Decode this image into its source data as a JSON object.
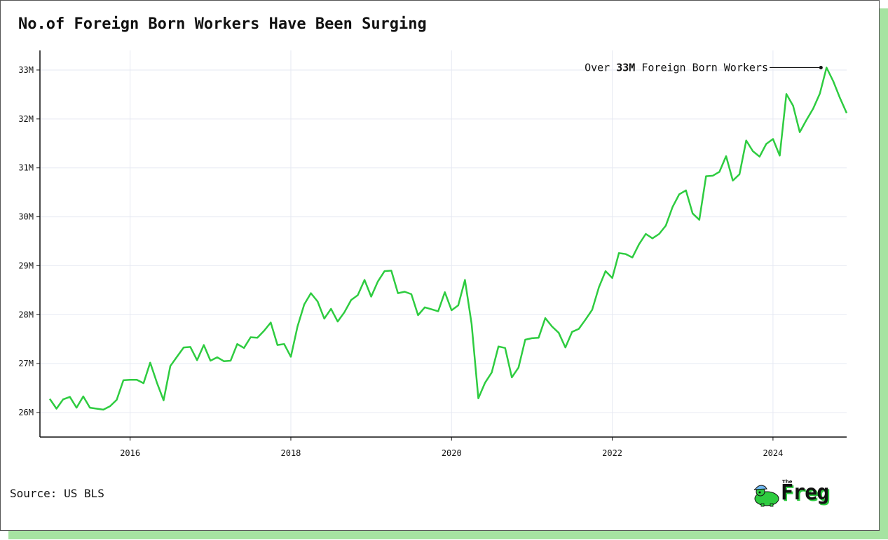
{
  "title": "No.of Foreign Born Workers Have Been Surging",
  "source": "Source: US BLS",
  "logo": {
    "small": "The",
    "word": "Freg",
    "icon": "frog-with-cap-icon"
  },
  "colors": {
    "line": "#2ecc40",
    "grid": "#e6e9f2",
    "axis": "#111111",
    "shadow": "#a6e3a1",
    "text": "#111111"
  },
  "annotation": {
    "prefix": "Over ",
    "bold": "33M",
    "suffix": " Foreign Born Workers"
  },
  "chart_data": {
    "type": "line",
    "title": "No.of Foreign Born Workers Have Been Surging",
    "xlabel": "",
    "ylabel": "",
    "x_start": "2015-01",
    "frequency": "monthly",
    "xlim": [
      "2015-01",
      "2024-12"
    ],
    "ylim": [
      25.5,
      33.4
    ],
    "y_ticks": [
      26,
      27,
      28,
      29,
      30,
      31,
      32,
      33
    ],
    "y_tick_labels": [
      "26M",
      "27M",
      "28M",
      "29M",
      "30M",
      "31M",
      "32M",
      "33M"
    ],
    "x_ticks": [
      "2016-01",
      "2018-01",
      "2020-01",
      "2022-01",
      "2024-01"
    ],
    "x_tick_labels": [
      "2016",
      "2018",
      "2020",
      "2022",
      "2024"
    ],
    "grid": true,
    "series": [
      {
        "unit": "millions",
        "values": [
          26.28,
          26.08,
          26.27,
          26.32,
          26.1,
          26.33,
          26.1,
          26.08,
          26.06,
          26.13,
          26.26,
          26.66,
          26.67,
          26.67,
          26.6,
          27.02,
          26.61,
          26.25,
          26.95,
          27.14,
          27.33,
          27.34,
          27.07,
          27.38,
          27.06,
          27.13,
          27.05,
          27.06,
          27.4,
          27.32,
          27.54,
          27.53,
          27.67,
          27.84,
          27.38,
          27.4,
          27.14,
          27.76,
          28.21,
          28.44,
          28.27,
          27.92,
          28.12,
          27.86,
          28.05,
          28.3,
          28.4,
          28.71,
          28.37,
          28.68,
          28.89,
          28.9,
          28.44,
          28.47,
          28.42,
          27.99,
          28.15,
          28.11,
          28.07,
          28.46,
          28.09,
          28.19,
          28.71,
          27.81,
          26.29,
          26.61,
          26.82,
          27.35,
          27.32,
          26.72,
          26.92,
          27.49,
          27.52,
          27.53,
          27.93,
          27.76,
          27.63,
          27.33,
          27.65,
          27.71,
          27.9,
          28.1,
          28.56,
          28.89,
          28.75,
          29.26,
          29.24,
          29.17,
          29.44,
          29.65,
          29.56,
          29.65,
          29.82,
          30.2,
          30.46,
          30.54,
          30.07,
          29.94,
          30.83,
          30.84,
          30.92,
          31.24,
          30.74,
          30.87,
          31.56,
          31.34,
          31.23,
          31.49,
          31.59,
          31.25,
          32.51,
          32.27,
          31.73,
          31.98,
          32.21,
          32.52,
          33.05,
          32.77,
          32.43,
          32.12
        ]
      }
    ]
  }
}
